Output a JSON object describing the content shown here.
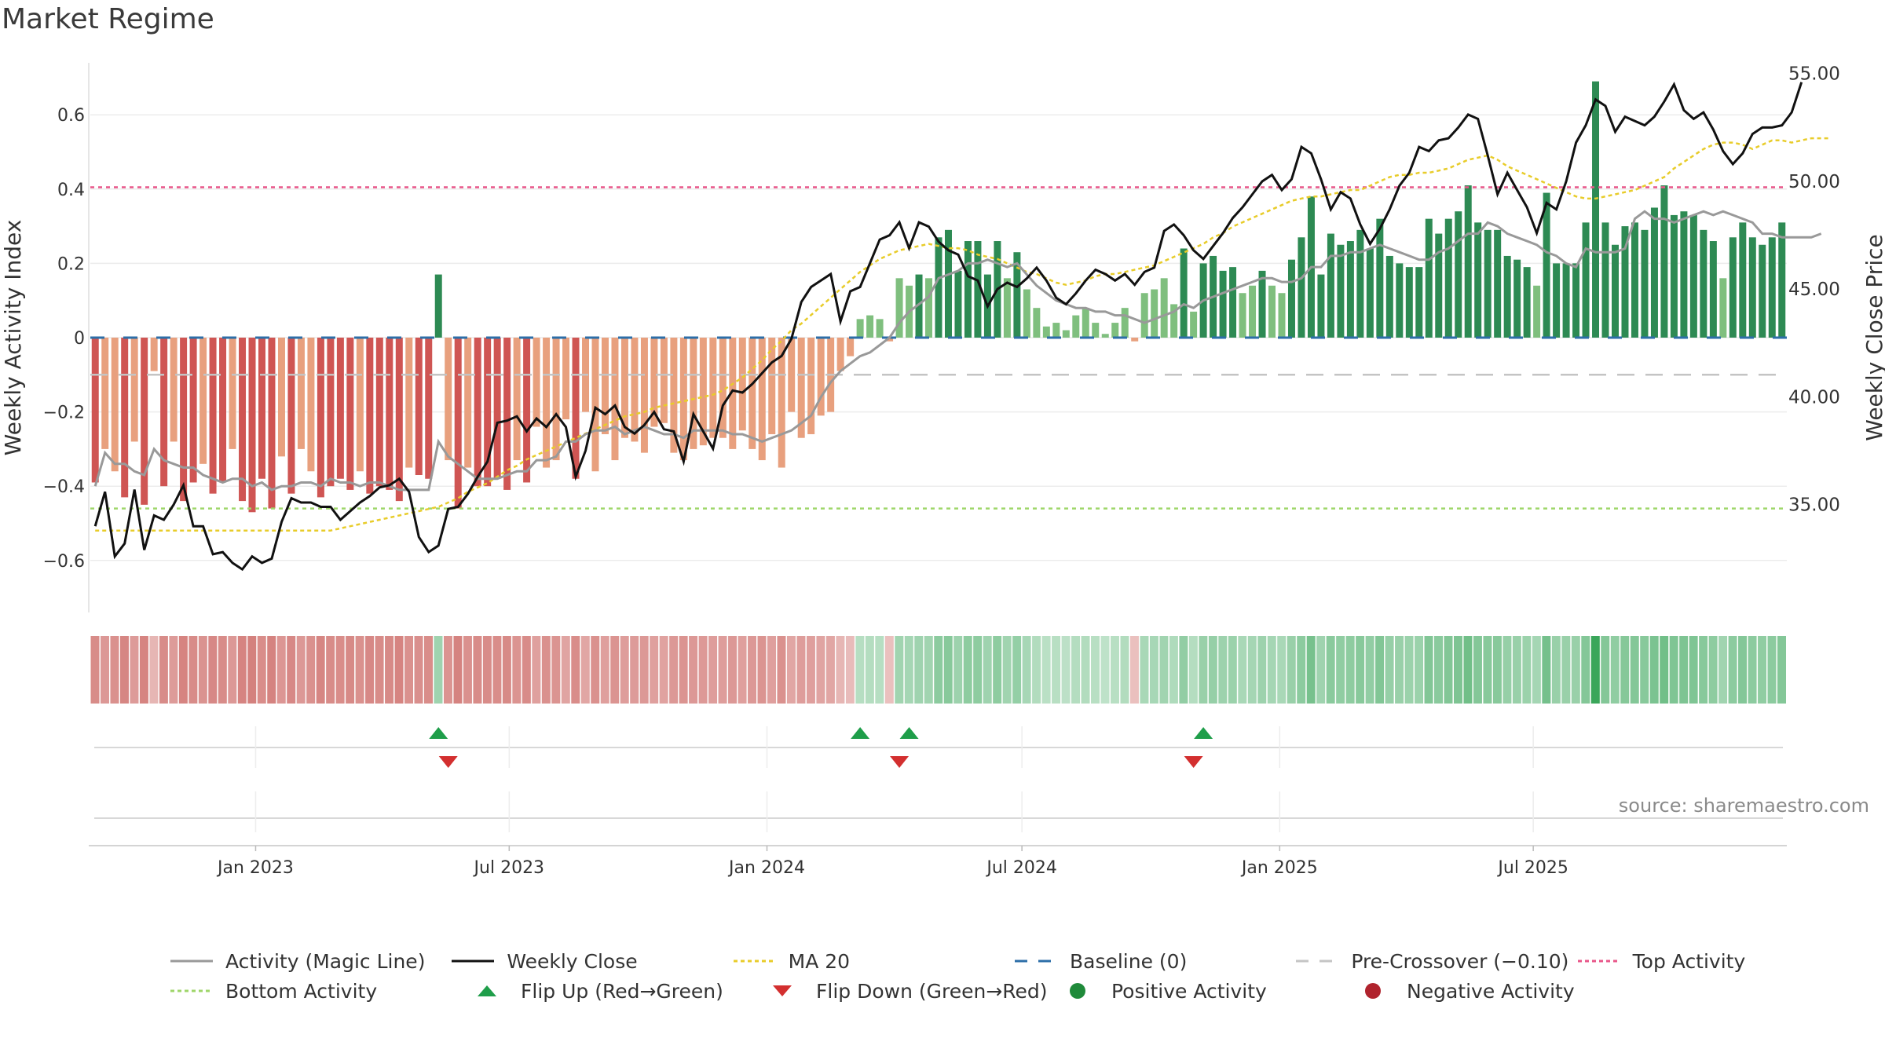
{
  "title": "Market Regime",
  "source": "source: sharemaestro.com",
  "chart_data": {
    "type": "bar",
    "title": "Market Regime",
    "x_axis": {
      "start": "2022-09-05",
      "tick_labels": [
        "Jan 2023",
        "Jul 2023",
        "Jan 2024",
        "Jul 2024",
        "Jan 2025",
        "Jul 2025"
      ]
    },
    "y_left": {
      "label": "Weekly Activity Index",
      "ticks": [
        0.6,
        0.4,
        0.2,
        0,
        -0.2,
        -0.4,
        -0.6
      ],
      "tick_labels": [
        "0.6",
        "0.4",
        "0.2",
        "0",
        "−0.2",
        "−0.4",
        "−0.6"
      ],
      "range": [
        -0.74,
        0.74
      ]
    },
    "y_right": {
      "label": "Weekly Close Price",
      "ticks": [
        55,
        50,
        45,
        40,
        35
      ],
      "tick_labels": [
        "55.00",
        "50.00",
        "45.00",
        "40.00",
        "35.00"
      ],
      "range": [
        30,
        55.5
      ]
    },
    "reference_lines": {
      "top_activity": 0.405,
      "bottom_activity": -0.46,
      "baseline": 0,
      "pre_crossover": -0.1
    },
    "activity_bars": [
      -0.39,
      -0.3,
      -0.36,
      -0.43,
      -0.28,
      -0.45,
      -0.09,
      -0.4,
      -0.28,
      -0.44,
      -0.39,
      -0.34,
      -0.42,
      -0.39,
      -0.3,
      -0.44,
      -0.47,
      -0.38,
      -0.46,
      -0.32,
      -0.42,
      -0.3,
      -0.36,
      -0.43,
      -0.4,
      -0.38,
      -0.41,
      -0.36,
      -0.42,
      -0.4,
      -0.41,
      -0.44,
      -0.35,
      -0.37,
      -0.38,
      0.17,
      -0.33,
      -0.46,
      -0.35,
      -0.4,
      -0.4,
      -0.38,
      -0.41,
      -0.33,
      -0.39,
      -0.24,
      -0.35,
      -0.33,
      -0.22,
      -0.38,
      -0.2,
      -0.36,
      -0.26,
      -0.33,
      -0.27,
      -0.28,
      -0.31,
      -0.24,
      -0.23,
      -0.31,
      -0.33,
      -0.3,
      -0.29,
      -0.27,
      -0.27,
      -0.3,
      -0.25,
      -0.3,
      -0.33,
      -0.26,
      -0.35,
      -0.2,
      -0.27,
      -0.26,
      -0.21,
      -0.2,
      -0.09,
      -0.05,
      0.05,
      0.06,
      0.05,
      -0.01,
      0.16,
      0.14,
      0.17,
      0.16,
      0.27,
      0.29,
      0.18,
      0.26,
      0.26,
      0.17,
      0.26,
      0.16,
      0.23,
      0.13,
      0.08,
      0.03,
      0.04,
      0.02,
      0.06,
      0.08,
      0.04,
      0.01,
      0.04,
      0.08,
      -0.01,
      0.12,
      0.13,
      0.16,
      0.09,
      0.24,
      0.07,
      0.2,
      0.22,
      0.18,
      0.19,
      0.12,
      0.14,
      0.18,
      0.14,
      0.12,
      0.21,
      0.27,
      0.38,
      0.17,
      0.28,
      0.25,
      0.26,
      0.29,
      0.24,
      0.32,
      0.22,
      0.2,
      0.19,
      0.19,
      0.32,
      0.28,
      0.32,
      0.34,
      0.41,
      0.31,
      0.29,
      0.29,
      0.22,
      0.21,
      0.19,
      0.14,
      0.39,
      0.2,
      0.2,
      0.2,
      0.31,
      0.69,
      0.31,
      0.25,
      0.3,
      0.31,
      0.29,
      0.35,
      0.41,
      0.33,
      0.34,
      0.33,
      0.29,
      0.26,
      0.16,
      0.27,
      0.31,
      0.27,
      0.25,
      0.27,
      0.31
    ],
    "activity_magic_line": [
      -0.4,
      -0.31,
      -0.34,
      -0.34,
      -0.36,
      -0.37,
      -0.3,
      -0.33,
      -0.34,
      -0.35,
      -0.35,
      -0.37,
      -0.38,
      -0.39,
      -0.38,
      -0.38,
      -0.4,
      -0.39,
      -0.41,
      -0.4,
      -0.4,
      -0.39,
      -0.39,
      -0.4,
      -0.38,
      -0.39,
      -0.39,
      -0.4,
      -0.39,
      -0.39,
      -0.4,
      -0.41,
      -0.41,
      -0.41,
      -0.41,
      -0.28,
      -0.32,
      -0.34,
      -0.36,
      -0.38,
      -0.38,
      -0.38,
      -0.37,
      -0.36,
      -0.36,
      -0.33,
      -0.33,
      -0.32,
      -0.28,
      -0.28,
      -0.26,
      -0.25,
      -0.25,
      -0.24,
      -0.26,
      -0.25,
      -0.24,
      -0.25,
      -0.26,
      -0.26,
      -0.27,
      -0.25,
      -0.25,
      -0.25,
      -0.25,
      -0.26,
      -0.26,
      -0.27,
      -0.28,
      -0.27,
      -0.26,
      -0.25,
      -0.23,
      -0.21,
      -0.16,
      -0.12,
      -0.09,
      -0.07,
      -0.05,
      -0.04,
      -0.02,
      0.0,
      0.04,
      0.07,
      0.09,
      0.11,
      0.16,
      0.17,
      0.18,
      0.2,
      0.2,
      0.21,
      0.2,
      0.19,
      0.2,
      0.17,
      0.14,
      0.12,
      0.1,
      0.09,
      0.08,
      0.08,
      0.07,
      0.07,
      0.06,
      0.06,
      0.05,
      0.04,
      0.05,
      0.06,
      0.07,
      0.09,
      0.08,
      0.1,
      0.11,
      0.12,
      0.13,
      0.14,
      0.15,
      0.16,
      0.16,
      0.15,
      0.15,
      0.16,
      0.19,
      0.19,
      0.22,
      0.22,
      0.23,
      0.23,
      0.24,
      0.25,
      0.24,
      0.23,
      0.22,
      0.21,
      0.21,
      0.23,
      0.24,
      0.26,
      0.28,
      0.28,
      0.31,
      0.3,
      0.28,
      0.27,
      0.26,
      0.25,
      0.23,
      0.22,
      0.2,
      0.19,
      0.24,
      0.23,
      0.23,
      0.23,
      0.24,
      0.32,
      0.34,
      0.32,
      0.32,
      0.31,
      0.32,
      0.33,
      0.34,
      0.33,
      0.34,
      0.33,
      0.32,
      0.31,
      0.28,
      0.28,
      0.27,
      0.27,
      0.27,
      0.27,
      0.28
    ],
    "weekly_close": [
      34.0,
      35.6,
      32.6,
      33.2,
      35.7,
      32.9,
      34.5,
      34.3,
      35.0,
      35.9,
      34.0,
      34.0,
      32.7,
      32.8,
      32.3,
      32.0,
      32.6,
      32.3,
      32.5,
      34.2,
      35.3,
      35.1,
      35.1,
      34.9,
      34.9,
      34.3,
      34.7,
      35.1,
      35.4,
      35.8,
      35.9,
      36.2,
      35.6,
      33.5,
      32.8,
      33.1,
      34.8,
      34.9,
      35.5,
      36.3,
      37.0,
      38.8,
      38.9,
      39.1,
      38.4,
      39.0,
      38.6,
      39.2,
      38.6,
      36.3,
      37.5,
      39.5,
      39.2,
      39.6,
      38.6,
      38.3,
      38.7,
      39.3,
      38.5,
      38.4,
      37.0,
      39.2,
      38.4,
      37.6,
      39.6,
      40.3,
      40.2,
      40.6,
      41.1,
      41.6,
      41.9,
      42.7,
      44.4,
      45.1,
      45.4,
      45.7,
      43.5,
      44.9,
      45.1,
      46.2,
      47.3,
      47.5,
      48.1,
      46.9,
      48.1,
      47.9,
      47.2,
      46.8,
      46.6,
      45.6,
      45.4,
      44.2,
      45.0,
      45.3,
      45.1,
      45.5,
      46.0,
      45.4,
      44.6,
      44.3,
      44.8,
      45.4,
      45.9,
      45.7,
      45.4,
      45.7,
      45.2,
      45.8,
      46.0,
      47.7,
      48.0,
      47.5,
      46.8,
      46.4,
      47.0,
      47.6,
      48.3,
      48.8,
      49.4,
      50.0,
      50.3,
      49.6,
      50.1,
      51.6,
      51.3,
      50.1,
      48.7,
      49.5,
      49.2,
      48.0,
      47.1,
      47.8,
      48.7,
      49.8,
      50.4,
      51.6,
      51.4,
      51.9,
      52.0,
      52.5,
      53.1,
      52.9,
      51.2,
      49.4,
      50.4,
      49.6,
      48.8,
      47.6,
      49.0,
      48.7,
      50.0,
      51.8,
      52.6,
      53.8,
      53.5,
      52.3,
      53.0,
      52.8,
      52.6,
      53.0,
      53.7,
      54.5,
      53.3,
      52.9,
      53.2,
      52.4,
      51.4,
      50.8,
      51.3,
      52.2,
      52.5,
      52.5,
      52.6,
      53.2,
      54.6
    ],
    "ma20_close": [
      33.8,
      33.8,
      33.8,
      33.8,
      33.8,
      33.8,
      33.8,
      33.8,
      33.8,
      33.8,
      33.8,
      33.8,
      33.8,
      33.8,
      33.8,
      33.8,
      33.8,
      33.8,
      33.8,
      33.8,
      33.8,
      33.8,
      33.8,
      33.8,
      33.8,
      33.9,
      34.0,
      34.1,
      34.2,
      34.3,
      34.4,
      34.5,
      34.6,
      34.7,
      34.8,
      34.9,
      35.1,
      35.3,
      35.6,
      35.8,
      36.0,
      36.3,
      36.6,
      36.8,
      37.1,
      37.3,
      37.5,
      37.7,
      37.9,
      38.1,
      38.3,
      38.5,
      38.7,
      38.9,
      39.1,
      39.2,
      39.3,
      39.5,
      39.6,
      39.7,
      39.8,
      39.9,
      40.0,
      40.1,
      40.3,
      40.6,
      40.9,
      41.3,
      41.7,
      42.2,
      42.6,
      43.1,
      43.4,
      43.8,
      44.2,
      44.6,
      45.0,
      45.4,
      45.8,
      46.1,
      46.4,
      46.6,
      46.8,
      46.9,
      47.0,
      47.1,
      47.0,
      46.9,
      46.9,
      46.8,
      46.6,
      46.5,
      46.4,
      46.2,
      46.0,
      45.8,
      45.7,
      45.5,
      45.3,
      45.2,
      45.3,
      45.4,
      45.6,
      45.7,
      45.7,
      45.8,
      45.9,
      46.0,
      46.1,
      46.3,
      46.5,
      46.7,
      46.9,
      47.1,
      47.4,
      47.6,
      47.9,
      48.1,
      48.3,
      48.5,
      48.7,
      48.9,
      49.1,
      49.2,
      49.3,
      49.3,
      49.4,
      49.5,
      49.6,
      49.6,
      49.8,
      50.0,
      50.2,
      50.3,
      50.3,
      50.4,
      50.4,
      50.5,
      50.6,
      50.8,
      51.0,
      51.1,
      51.2,
      51.0,
      50.7,
      50.5,
      50.3,
      50.1,
      49.9,
      49.7,
      49.5,
      49.3,
      49.2,
      49.2,
      49.3,
      49.4,
      49.5,
      49.6,
      49.8,
      50.0,
      50.2,
      50.6,
      50.9,
      51.2,
      51.5,
      51.7,
      51.8,
      51.8,
      51.7,
      51.5,
      51.7,
      51.9,
      51.9,
      51.8,
      51.9,
      52.0,
      52.0,
      52.0
    ],
    "flip_up_weeks": [
      35,
      78,
      83,
      113
    ],
    "flip_down_weeks": [
      36,
      82,
      112
    ],
    "legend": [
      {
        "label": "Activity (Magic Line)",
        "marker": "line",
        "color": "#999999"
      },
      {
        "label": "Weekly Close",
        "marker": "line",
        "color": "#111111"
      },
      {
        "label": "MA 20",
        "marker": "dotted",
        "color": "#e8cc2a"
      },
      {
        "label": "Baseline (0)",
        "marker": "dashed",
        "color": "#2c6ea8"
      },
      {
        "label": "Pre-Crossover (−0.10)",
        "marker": "dashed",
        "color": "#c4c4c4"
      },
      {
        "label": "Top Activity",
        "marker": "dotted",
        "color": "#e8578a"
      },
      {
        "label": "Bottom Activity",
        "marker": "dotted",
        "color": "#9fd66a"
      },
      {
        "label": "Flip Up (Red→Green)",
        "marker": "triangle-up",
        "color": "#1f9e4a"
      },
      {
        "label": "Flip Down (Green→Red)",
        "marker": "triangle-down",
        "color": "#d32f2f"
      },
      {
        "label": "Positive Activity",
        "marker": "circle",
        "color": "#1f8a3a"
      },
      {
        "label": "Negative Activity",
        "marker": "circle",
        "color": "#b0232d"
      }
    ],
    "colors": {
      "neg_strong": "#cf5553",
      "neg_light": "#e8a07e",
      "pos_strong": "#2d8a53",
      "pos_light": "#7fbf7e",
      "pos_faint": "#a8d8a2",
      "magic_line": "#999999",
      "close": "#111111",
      "ma20": "#e8cc2a",
      "top": "#e8578a",
      "bottom": "#9fd66a",
      "baseline": "#2c6ea8",
      "precross": "#c4c4c4",
      "flip_up": "#1f9e4a",
      "flip_down": "#d32f2f"
    }
  }
}
